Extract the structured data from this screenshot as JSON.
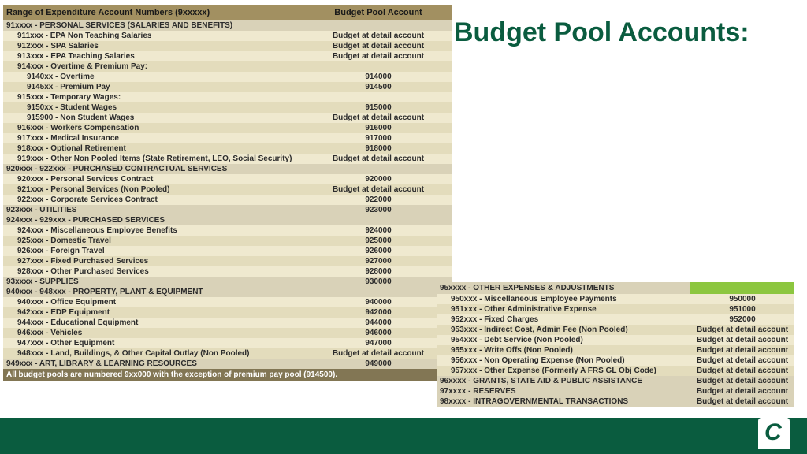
{
  "title": "Budget Pool Accounts:",
  "table1": {
    "head_c1": "Range of Expenditure Account Numbers (9xxxxx)",
    "head_c2": "Budget Pool Account",
    "rows": [
      {
        "cls": "hdr",
        "c1": "91xxxx - PERSONAL SERVICES (SALARIES AND BENEFITS)",
        "c2": ""
      },
      {
        "cls": "lt ind1",
        "c1": "911xxx - EPA Non Teaching Salaries",
        "c2": "Budget at detail account"
      },
      {
        "cls": "dk ind1",
        "c1": "912xxx - SPA Salaries",
        "c2": "Budget at detail account"
      },
      {
        "cls": "lt ind1",
        "c1": "913xxx - EPA Teaching Salaries",
        "c2": "Budget at detail account"
      },
      {
        "cls": "dk ind1",
        "c1": "914xxx - Overtime & Premium Pay:",
        "c2": ""
      },
      {
        "cls": "lt ind2",
        "c1": "9140xx - Overtime",
        "c2": "914000"
      },
      {
        "cls": "dk ind2",
        "c1": "9145xx - Premium Pay",
        "c2": "914500"
      },
      {
        "cls": "lt ind1",
        "c1": "915xxx - Temporary Wages:",
        "c2": ""
      },
      {
        "cls": "dk ind2",
        "c1": "9150xx - Student Wages",
        "c2": "915000"
      },
      {
        "cls": "lt ind2",
        "c1": "915900 - Non Student Wages",
        "c2": "Budget at detail account"
      },
      {
        "cls": "dk ind1",
        "c1": "916xxx - Workers Compensation",
        "c2": "916000"
      },
      {
        "cls": "lt ind1",
        "c1": "917xxx - Medical Insurance",
        "c2": "917000"
      },
      {
        "cls": "dk ind1",
        "c1": "918xxx - Optional Retirement",
        "c2": "918000"
      },
      {
        "cls": "lt ind1",
        "c1": "919xxx - Other Non Pooled Items (State Retirement, LEO, Social Security)",
        "c2": "Budget at detail account"
      },
      {
        "cls": "hdr",
        "c1": "920xxx - 922xxx - PURCHASED CONTRACTUAL SERVICES",
        "c2": ""
      },
      {
        "cls": "lt ind1",
        "c1": "920xxx - Personal Services Contract",
        "c2": "920000"
      },
      {
        "cls": "dk ind1",
        "c1": "921xxx - Personal Services (Non Pooled)",
        "c2": "Budget at detail account"
      },
      {
        "cls": "lt ind1",
        "c1": "922xxx - Corporate Services Contract",
        "c2": "922000"
      },
      {
        "cls": "hdr",
        "c1": "923xxx - UTILITIES",
        "c2": "923000"
      },
      {
        "cls": "hdr",
        "c1": "924xxx - 929xxx - PURCHASED SERVICES",
        "c2": ""
      },
      {
        "cls": "lt ind1",
        "c1": "924xxx - Miscellaneous Employee Benefits",
        "c2": "924000"
      },
      {
        "cls": "dk ind1",
        "c1": "925xxx - Domestic Travel",
        "c2": "925000"
      },
      {
        "cls": "lt ind1",
        "c1": "926xxx - Foreign Travel",
        "c2": "926000"
      },
      {
        "cls": "dk ind1",
        "c1": "927xxx - Fixed Purchased Services",
        "c2": "927000"
      },
      {
        "cls": "lt ind1",
        "c1": "928xxx - Other Purchased Services",
        "c2": "928000"
      },
      {
        "cls": "hdr",
        "c1": "93xxxx - SUPPLIES",
        "c2": "930000"
      },
      {
        "cls": "hdr",
        "c1": "940xxx - 948xxx - PROPERTY, PLANT & EQUIPMENT",
        "c2": ""
      },
      {
        "cls": "lt ind1",
        "c1": "940xxx - Office Equipment",
        "c2": "940000"
      },
      {
        "cls": "dk ind1",
        "c1": "942xxx - EDP Equipment",
        "c2": "942000"
      },
      {
        "cls": "lt ind1",
        "c1": "944xxx - Educational Equipment",
        "c2": "944000"
      },
      {
        "cls": "dk ind1",
        "c1": "946xxx - Vehicles",
        "c2": "946000"
      },
      {
        "cls": "lt ind1",
        "c1": "947xxx - Other Equipment",
        "c2": "947000"
      },
      {
        "cls": "dk ind1",
        "c1": "948xxx  - Land, Buildings, & Other Capital Outlay (Non Pooled)",
        "c2": "Budget at detail account"
      },
      {
        "cls": "hdr",
        "c1": "949xxx - ART, LIBRARY & LEARNING RESOURCES",
        "c2": "949000"
      }
    ],
    "footnote": "All budget pools are numbered 9xx000 with the exception of premium pay pool (914500)."
  },
  "table2": {
    "head_c1": "95xxxx - OTHER EXPENSES & ADJUSTMENTS",
    "rows": [
      {
        "cls": "lt ind1",
        "c1": "950xxx - Miscellaneous Employee Payments",
        "c2": "950000"
      },
      {
        "cls": "dk ind1",
        "c1": "951xxx - Other Administrative Expense",
        "c2": "951000"
      },
      {
        "cls": "lt ind1",
        "c1": "952xxx - Fixed Charges",
        "c2": "952000"
      },
      {
        "cls": "dk ind1",
        "c1": "953xxx - Indirect Cost, Admin Fee (Non Pooled)",
        "c2": "Budget at detail account"
      },
      {
        "cls": "lt ind1",
        "c1": "954xxx - Debt Service (Non Pooled)",
        "c2": "Budget at detail account"
      },
      {
        "cls": "dk ind1",
        "c1": "955xxx - Write Offs (Non Pooled)",
        "c2": "Budget at detail account"
      },
      {
        "cls": "lt ind1",
        "c1": "956xxx - Non Operating Expense (Non Pooled)",
        "c2": "Budget at detail account"
      },
      {
        "cls": "dk ind1",
        "c1": "957xxx - Other Expense (Formerly A FRS GL Obj Code)",
        "c2": "Budget at detail account"
      },
      {
        "cls": "hdr",
        "c1": "96xxxx - GRANTS, STATE AID & PUBLIC ASSISTANCE",
        "c2": "Budget at detail account"
      },
      {
        "cls": "hdr",
        "c1": "97xxxx - RESERVES",
        "c2": "Budget at detail account"
      },
      {
        "cls": "hdr",
        "c1": "98xxxx - INTRAGOVERNMENTAL TRANSACTIONS",
        "c2": "Budget at detail account"
      }
    ]
  }
}
